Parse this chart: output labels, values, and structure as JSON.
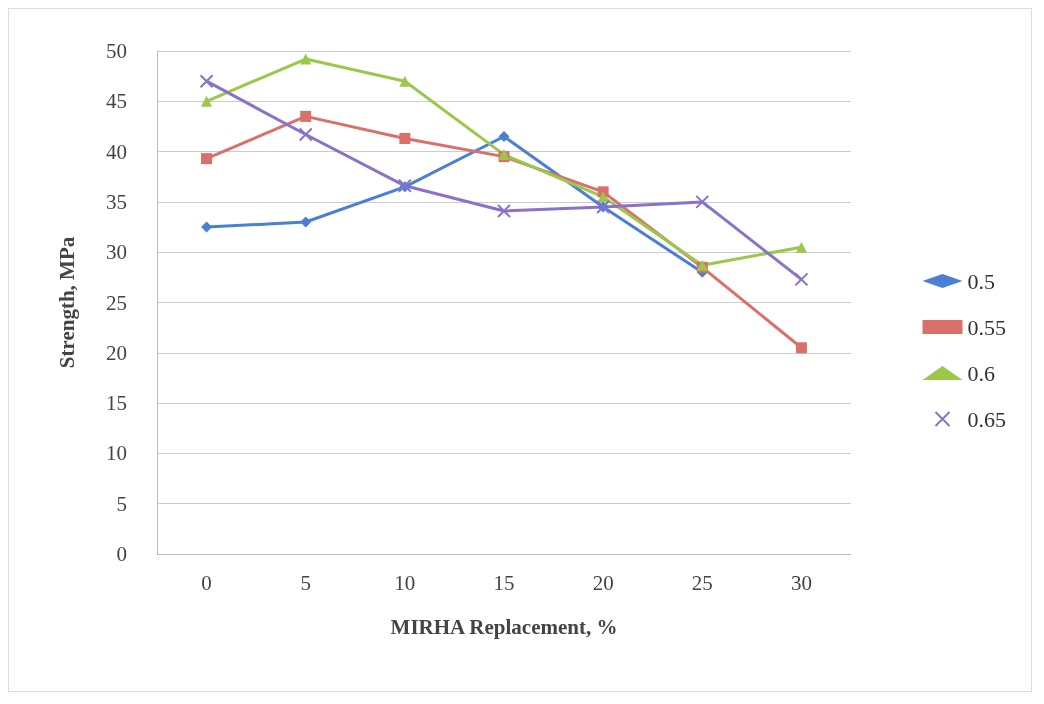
{
  "chart_data": {
    "type": "line",
    "xlabel": "MIRHA Replacement, %",
    "ylabel": "Strength, MPa",
    "categories": [
      "0",
      "5",
      "10",
      "15",
      "20",
      "25",
      "30"
    ],
    "ylim": [
      0,
      50
    ],
    "yticks": [
      0,
      5,
      10,
      15,
      20,
      25,
      30,
      35,
      40,
      45,
      50
    ],
    "grid": "y",
    "legend": "right",
    "series": [
      {
        "name": "0.5",
        "color": "#4a7fd6",
        "marker": "diamond",
        "values": [
          32.5,
          33,
          36.5,
          41.5,
          34.5,
          28,
          null
        ]
      },
      {
        "name": "0.55",
        "color": "#d9706a",
        "marker": "square",
        "values": [
          39.3,
          43.5,
          41.3,
          39.5,
          36,
          28.5,
          20.5
        ]
      },
      {
        "name": "0.6",
        "color": "#9bc84a",
        "marker": "triangle",
        "values": [
          45,
          49.2,
          47,
          39.7,
          35.5,
          28.7,
          30.5
        ]
      },
      {
        "name": "0.65",
        "color": "#8a72c8",
        "marker": "cross",
        "values": [
          47,
          41.7,
          36.6,
          34.1,
          34.5,
          35,
          27.3
        ]
      }
    ]
  }
}
